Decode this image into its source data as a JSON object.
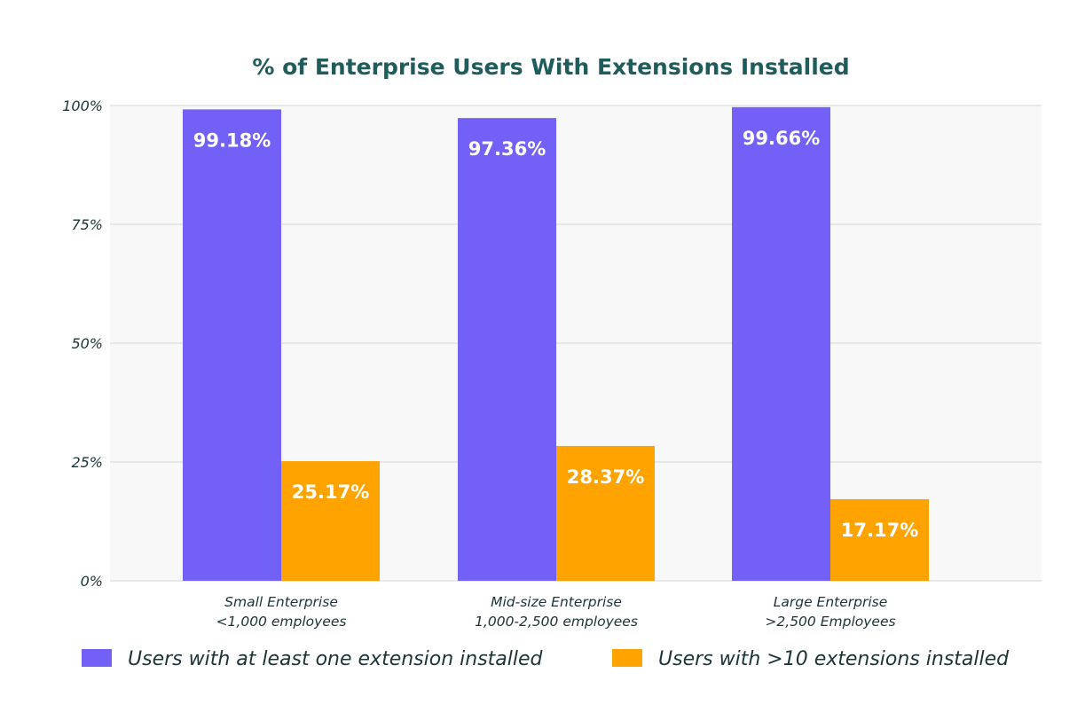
{
  "colors": {
    "series1": "#7360f7",
    "series2": "#ffa300",
    "title": "#1f5c5c",
    "text": "#1b3438",
    "plot_bg": "#f7f8f7",
    "grid": "#e1e3e2",
    "label": "#ffffff"
  },
  "chart_data": {
    "type": "bar",
    "title": "% of Enterprise Users With Extensions Installed",
    "xlabel": "",
    "ylabel": "",
    "ylim": [
      0,
      100
    ],
    "yticks": [
      0,
      25,
      50,
      75,
      100
    ],
    "ytick_labels": [
      "0%",
      "25%",
      "50%",
      "75%",
      "100%"
    ],
    "grid": true,
    "legend_position": "bottom",
    "categories": [
      {
        "line1": "Small Enterprise",
        "line2": "<1,000 employees"
      },
      {
        "line1": "Mid-size Enterprise",
        "line2": "1,000-2,500 employees"
      },
      {
        "line1": "Large Enterprise",
        "line2": ">2,500 Employees"
      }
    ],
    "series": [
      {
        "name": "Users with at least one extension installed",
        "values": [
          99.18,
          97.36,
          99.66
        ],
        "labels": [
          "99.18%",
          "97.36%",
          "99.66%"
        ]
      },
      {
        "name": "Users with >10 extensions installed",
        "values": [
          25.17,
          28.37,
          17.17
        ],
        "labels": [
          "25.17%",
          "28.37%",
          "17.17%"
        ]
      }
    ]
  }
}
